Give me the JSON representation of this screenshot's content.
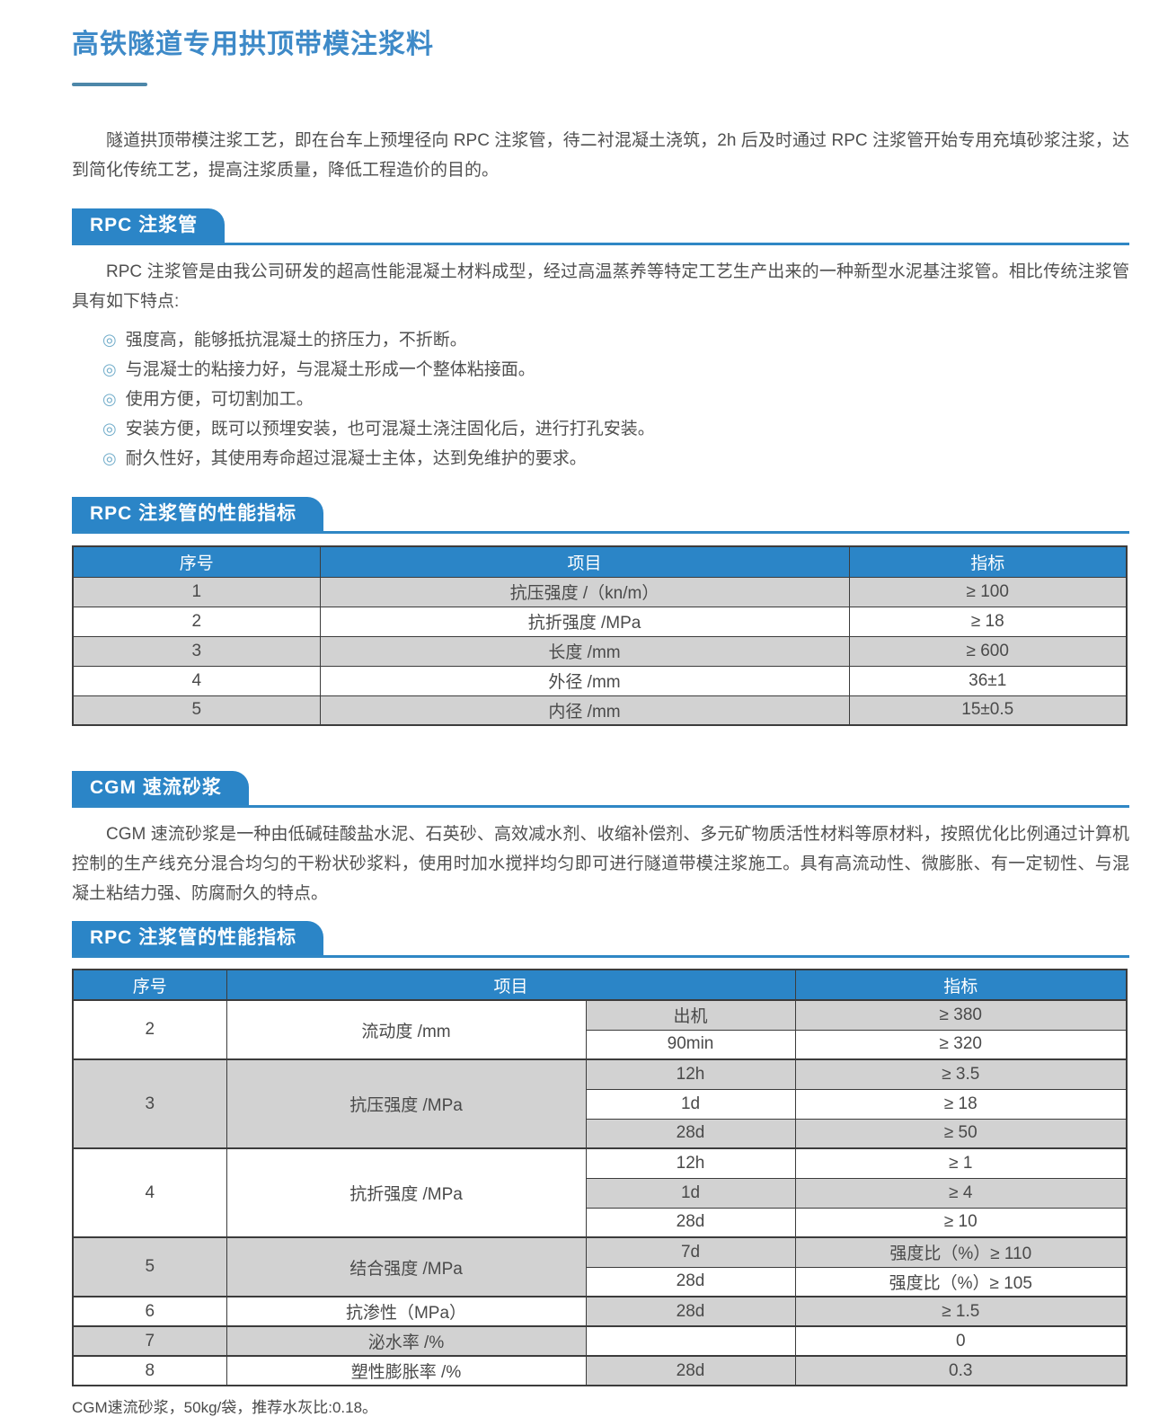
{
  "page": {
    "title": "高铁隧道专用拱顶带模注浆料",
    "intro": "隧道拱顶带模注浆工艺，即在台车上预埋径向 RPC 注浆管，待二衬混凝土浇筑，2h 后及时通过 RPC 注浆管开始专用充填砂浆注浆，达到简化传统工艺，提高注浆质量，降低工程造价的目的。",
    "footnote": "CGM速流砂浆，50kg/袋，推荐水灰比:0.18。"
  },
  "colors": {
    "accent_blue": "#2b85c7",
    "title_blue": "#3e8ac8",
    "row_gray": "#d2d2d2",
    "border_dark": "#3c3c3c"
  },
  "rpc_section": {
    "heading": "RPC 注浆管",
    "paragraph": "RPC 注浆管是由我公司研发的超高性能混凝土材料成型，经过高温蒸养等特定工艺生产出来的一种新型水泥基注浆管。相比传统注浆管具有如下特点:",
    "bullet_icon": "◎",
    "bullets": [
      "强度高，能够抵抗混凝土的挤压力，不折断。",
      "与混凝士的粘接力好，与混凝土形成一个整体粘接面。",
      "使用方便，可切割加工。",
      "安装方便，既可以预埋安装，也可混凝土浇注固化后，进行打孔安装。",
      "耐久性好，其使用寿命超过混凝士主体，达到免维护的要求。"
    ]
  },
  "cgm_section": {
    "heading": "CGM 速流砂浆",
    "paragraph": "CGM 速流砂浆是一种由低碱硅酸盐水泥、石英砂、高效减水剂、收缩补偿剂、多元矿物质活性材料等原材料，按照优化比例通过计算机控制的生产线充分混合均匀的干粉状砂浆料，使用时加水搅拌均匀即可进行隧道带模注浆施工。具有高流动性、微膨胀、有一定韧性、与混凝土粘结力强、防腐耐久的特点。"
  },
  "table1": {
    "heading": "RPC 注浆管的性能指标",
    "columns": [
      "序号",
      "项目",
      "指标"
    ],
    "rows": [
      [
        "1",
        "抗压强度 /（kn/m）",
        "≥ 100"
      ],
      [
        "2",
        "抗折强度 /MPa",
        "≥ 18"
      ],
      [
        "3",
        "长度 /mm",
        "≥ 600"
      ],
      [
        "4",
        "外径 /mm",
        "36±1"
      ],
      [
        "5",
        "内径 /mm",
        "15±0.5"
      ]
    ]
  },
  "table2": {
    "heading": "RPC 注浆管的性能指标",
    "columns": [
      "序号",
      "项目",
      "指标"
    ],
    "groups": [
      {
        "no": "2",
        "item": "流动度 /mm",
        "subs": [
          {
            "cond": "出机",
            "value": "≥ 380"
          },
          {
            "cond": "90min",
            "value": "≥ 320"
          }
        ]
      },
      {
        "no": "3",
        "item": "抗压强度 /MPa",
        "subs": [
          {
            "cond": "12h",
            "value": "≥ 3.5"
          },
          {
            "cond": "1d",
            "value": "≥ 18"
          },
          {
            "cond": "28d",
            "value": "≥ 50"
          }
        ]
      },
      {
        "no": "4",
        "item": "抗折强度 /MPa",
        "subs": [
          {
            "cond": "12h",
            "value": "≥ 1"
          },
          {
            "cond": "1d",
            "value": "≥ 4"
          },
          {
            "cond": "28d",
            "value": "≥ 10"
          }
        ]
      },
      {
        "no": "5",
        "item": "结合强度 /MPa",
        "subs": [
          {
            "cond": "7d",
            "value": "强度比（%）≥ 110"
          },
          {
            "cond": "28d",
            "value": "强度比（%）≥ 105"
          }
        ]
      },
      {
        "no": "6",
        "item": "抗渗性（MPa）",
        "subs": [
          {
            "cond": "28d",
            "value": "≥ 1.5"
          }
        ]
      },
      {
        "no": "7",
        "item": "泌水率 /%",
        "subs": [
          {
            "cond": "",
            "value": "0"
          }
        ]
      },
      {
        "no": "8",
        "item": "塑性膨胀率 /%",
        "subs": [
          {
            "cond": "28d",
            "value": "0.3"
          }
        ]
      }
    ]
  }
}
